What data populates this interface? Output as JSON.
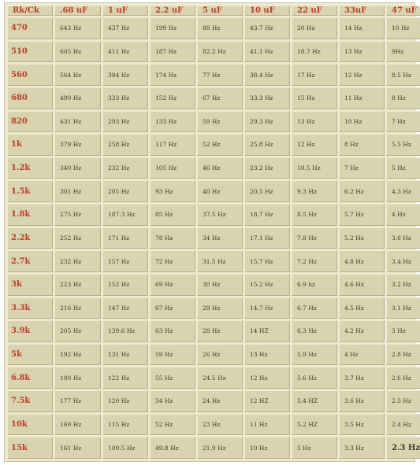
{
  "table": {
    "headers": [
      "Rk/Ck",
      ".68 uF",
      "1 uF",
      "2.2 uF",
      "5 uF",
      "10 uF",
      "22 uF",
      "33uF",
      "47 uF"
    ],
    "rows": [
      {
        "label": "470",
        "values": [
          "643 Hz",
          "437 Hz",
          "199 Hz",
          "88 Hz",
          "43.7 Hz",
          "20 Hz",
          "14 Hz",
          "10 Hz"
        ]
      },
      {
        "label": "510",
        "values": [
          "605 Hz",
          "411 Hz",
          "187 Hz",
          "82.2 Hz",
          "41.1 Hz",
          "18.7 Hz",
          "13 Hz",
          "9Hz"
        ]
      },
      {
        "label": "560",
        "values": [
          "564 Hz",
          "384 Hz",
          "174 Hz",
          "77 Hz",
          "38.4 Hz",
          "17 Hz",
          "12 Hz",
          "8.5 Hz"
        ]
      },
      {
        "label": "680",
        "values": [
          "490 Hz",
          "333 Hz",
          "152 Hz",
          "67 Hz",
          "33.3 Hz",
          "15 Hz",
          "11 Hz",
          "8 Hz"
        ]
      },
      {
        "label": "820",
        "values": [
          "431 Hz",
          "293 Hz",
          "133 Hz",
          "59 Hz",
          "29.3 Hz",
          "13 Hz",
          "10 Hz",
          "7 Hz"
        ]
      },
      {
        "label": "1k",
        "values": [
          "379 Hz",
          "258 Hz",
          "117 Hz",
          "52 Hz",
          "25.8 Hz",
          "12 Hz",
          "8 Hz",
          "5.5 Hz"
        ]
      },
      {
        "label": "1.2k",
        "values": [
          "340 Hz",
          "232 Hz",
          "105 Hz",
          "46 Hz",
          "23.2 Hz",
          "10.5 Hz",
          "7 Hz",
          "5 Hz"
        ]
      },
      {
        "label": "1.5k",
        "values": [
          "301 Hz",
          "205 Hz",
          "93 Hz",
          "40 Hz",
          "20.5 Hz",
          "9.3 Hz",
          "6.2 Hz",
          "4.3 Hz"
        ]
      },
      {
        "label": "1.8k",
        "values": [
          "275 Hz",
          "187.3 Hz",
          "85 Hz",
          "37.5 Hz",
          "18.7 Hz",
          "8.5 Hz",
          "5.7 Hz",
          "4 Hz"
        ]
      },
      {
        "label": "2.2k",
        "values": [
          "252 Hz",
          "171 Hz",
          "78 Hz",
          "34 Hz",
          "17.1 Hz",
          "7.8 Hz",
          "5.2 Hz",
          "3.6 Hz"
        ]
      },
      {
        "label": "2.7k",
        "values": [
          "232 Hz",
          "157 Hz",
          "72 Hz",
          "31.5 Hz",
          "15.7 Hz",
          "7.2 Hz",
          "4.8 Hz",
          "3.4 Hz"
        ]
      },
      {
        "label": "3k",
        "values": [
          "223 Hz",
          "152 Hz",
          "69 Hz",
          "30 Hz",
          "15.2 Hz",
          "6.9 hz",
          "4.6 Hz",
          "3.2 Hz"
        ]
      },
      {
        "label": "3.3k",
        "values": [
          "216 Hz",
          "147 Hz",
          "67 Hz",
          "29 Hz",
          "14.7 Hz",
          "6.7 Hz",
          "4.5 Hz",
          "3.1 Hz"
        ]
      },
      {
        "label": "3.9k",
        "values": [
          "205 Hz",
          "139.6 Hz",
          "63 Hz",
          "28 Hz",
          "14 HZ",
          "6.3 Hz",
          "4.2 Hz",
          "3 Hz"
        ]
      },
      {
        "label": "5k",
        "values": [
          "192 Hz",
          "131 Hz",
          "59 Hz",
          "26 Hz",
          "13 Hz",
          "5.9 Hz",
          "4 Hz",
          "2.8 Hz"
        ]
      },
      {
        "label": "6.8k",
        "values": [
          "180 Hz",
          "122 Hz",
          "55 Hz",
          "24.5 Hz",
          "12 Hz",
          "5.6 Hz",
          "3.7 Hz",
          "2.6 Hz"
        ]
      },
      {
        "label": "7.5k",
        "values": [
          "177 Hz",
          "120 Hz",
          "54 Hz",
          "24 Hz",
          "12 HZ",
          "5.4 HZ",
          "3.6 Hz",
          "2.5 Hz"
        ]
      },
      {
        "label": "10k",
        "values": [
          "169 Hz",
          "115 Hz",
          "52 Hz",
          "23 Hz",
          "11 Hz",
          "5.2 HZ",
          "3.5 Hz",
          "2.4 Hz"
        ]
      },
      {
        "label": "15k",
        "values": [
          "161 Hz",
          "109.5 Hz",
          "49.8 Hz",
          "21.9 Hz",
          "10 Hz",
          "5 Hz",
          "3.3 Hz",
          "2.3 Hz"
        ]
      }
    ]
  }
}
